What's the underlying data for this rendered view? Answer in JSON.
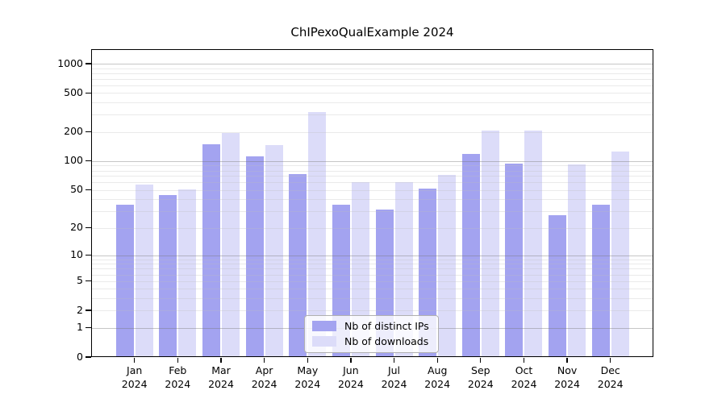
{
  "chart_data": {
    "type": "bar",
    "title": "ChIPexoQualExample 2024",
    "categories": [
      "Jan 2024",
      "Feb 2024",
      "Mar 2024",
      "Apr 2024",
      "May 2024",
      "Jun 2024",
      "Jul 2024",
      "Aug 2024",
      "Sep 2024",
      "Oct 2024",
      "Nov 2024",
      "Dec 2024"
    ],
    "x_tick_months": [
      "Jan",
      "Feb",
      "Mar",
      "Apr",
      "May",
      "Jun",
      "Jul",
      "Aug",
      "Sep",
      "Oct",
      "Nov",
      "Dec"
    ],
    "x_tick_year": "2024",
    "series": [
      {
        "name": "Nb of distinct IPs",
        "color": "#a3a3f0",
        "values": [
          35,
          44,
          150,
          112,
          73,
          35,
          31,
          52,
          119,
          95,
          27,
          35
        ]
      },
      {
        "name": "Nb of downloads",
        "color": "#dcdcf9",
        "values": [
          57,
          51,
          195,
          147,
          320,
          61,
          60,
          72,
          205,
          207,
          92,
          125
        ]
      }
    ],
    "yscale": "log1p",
    "yticks": [
      0,
      1,
      2,
      5,
      10,
      20,
      50,
      100,
      200,
      500,
      1000
    ],
    "ylim": [
      0,
      1400
    ],
    "grid": "both",
    "legend": {
      "position": "bottom-center",
      "labels": [
        "Nb of distinct IPs",
        "Nb of downloads"
      ]
    }
  },
  "colors": {
    "bar_distinct_ips": "#a3a3f0",
    "bar_downloads": "#dcdcf9",
    "grid_major": "#c9c9c9",
    "grid_minor": "#e8e8e8",
    "axis": "#000000",
    "background": "#ffffff"
  }
}
